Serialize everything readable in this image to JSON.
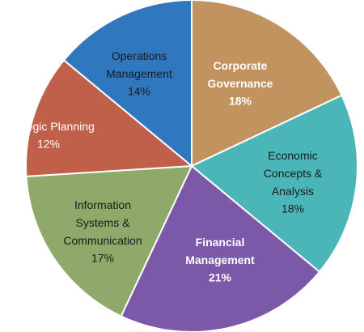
{
  "chart_data": {
    "type": "pie",
    "categories": [
      "Corporate Governance",
      "Economic Concepts & Analysis",
      "Financial Management",
      "Information Systems & Communication",
      "Strategic Planning",
      "Operations Management"
    ],
    "values": [
      18,
      18,
      21,
      17,
      12,
      14
    ],
    "value_labels": [
      "18%",
      "18%",
      "21%",
      "17%",
      "12%",
      "14%"
    ],
    "colors": [
      "#c0935f",
      "#4bb6b7",
      "#7b58a8",
      "#8fa96b",
      "#c0604a",
      "#2f78bf"
    ]
  }
}
